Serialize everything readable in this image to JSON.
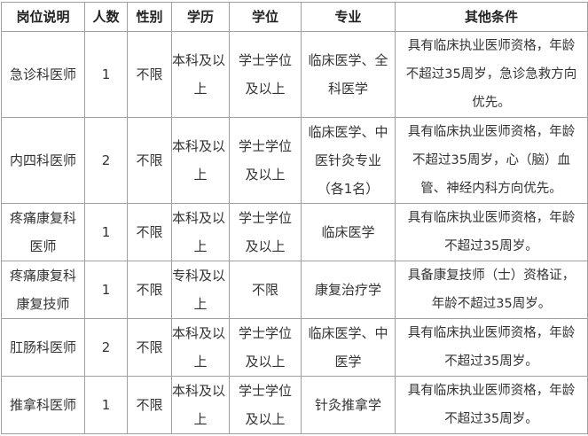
{
  "headers": [
    "岗位说明",
    "人数",
    "性别",
    "学历",
    "学位",
    "专业",
    "其他条件"
  ],
  "rows": [
    {
      "position": [
        "急诊科医师"
      ],
      "count": [
        "1"
      ],
      "gender": [
        "不限"
      ],
      "education": [
        "本科及以",
        "上"
      ],
      "degree": [
        "学士学位",
        "及以上"
      ],
      "major": [
        "临床医学、全",
        "科医学"
      ],
      "conditions": [
        "具有临床执业医师资格，年龄",
        "不超过35周岁，急诊急救方向",
        "优先。"
      ]
    },
    {
      "position": [
        "内四科医师"
      ],
      "count": [
        "2"
      ],
      "gender": [
        "不限"
      ],
      "education": [
        "本科及以",
        "上"
      ],
      "degree": [
        "学士学位",
        "及以上"
      ],
      "major": [
        "临床医学、中",
        "医针灸专业",
        "（各1名）"
      ],
      "conditions": [
        "具有临床执业医师资格，年龄",
        "不超过35周岁，心（脑）血",
        "管、神经内科方向优先。"
      ]
    },
    {
      "position": [
        "疼痛康复科",
        "医师"
      ],
      "count": [
        "1"
      ],
      "gender": [
        "不限"
      ],
      "education": [
        "本科及以",
        "上"
      ],
      "degree": [
        "学士学位",
        "及以上"
      ],
      "major": [
        "临床医学"
      ],
      "conditions": [
        "具有临床执业医师资格，年龄",
        "不超过35周岁。"
      ]
    },
    {
      "position": [
        "疼痛康复科",
        "康复技师"
      ],
      "count": [
        "1"
      ],
      "gender": [
        "不限"
      ],
      "education": [
        "专科及以",
        "上"
      ],
      "degree": [
        "不限"
      ],
      "major": [
        "康复治疗学"
      ],
      "conditions": [
        "具备康复技师（士）资格证，",
        "年龄不超过35周岁。"
      ]
    },
    {
      "position": [
        "肛肠科医师"
      ],
      "count": [
        "2"
      ],
      "gender": [
        "不限"
      ],
      "education": [
        "本科及以",
        "上"
      ],
      "degree": [
        "学士学位",
        "及以上"
      ],
      "major": [
        "临床医学、中",
        "医学"
      ],
      "conditions": [
        "具有临床执业医师资格，年龄",
        "不超过35周岁。"
      ]
    },
    {
      "position": [
        "推拿科医师"
      ],
      "count": [
        "1"
      ],
      "gender": [
        "不限"
      ],
      "education": [
        "本科及以",
        "上"
      ],
      "degree": [
        "学士学位",
        "及以上"
      ],
      "major": [
        "针灸推拿学"
      ],
      "conditions": [
        "具有临床执业医师资格，年龄",
        "不超过35周岁。"
      ]
    }
  ]
}
